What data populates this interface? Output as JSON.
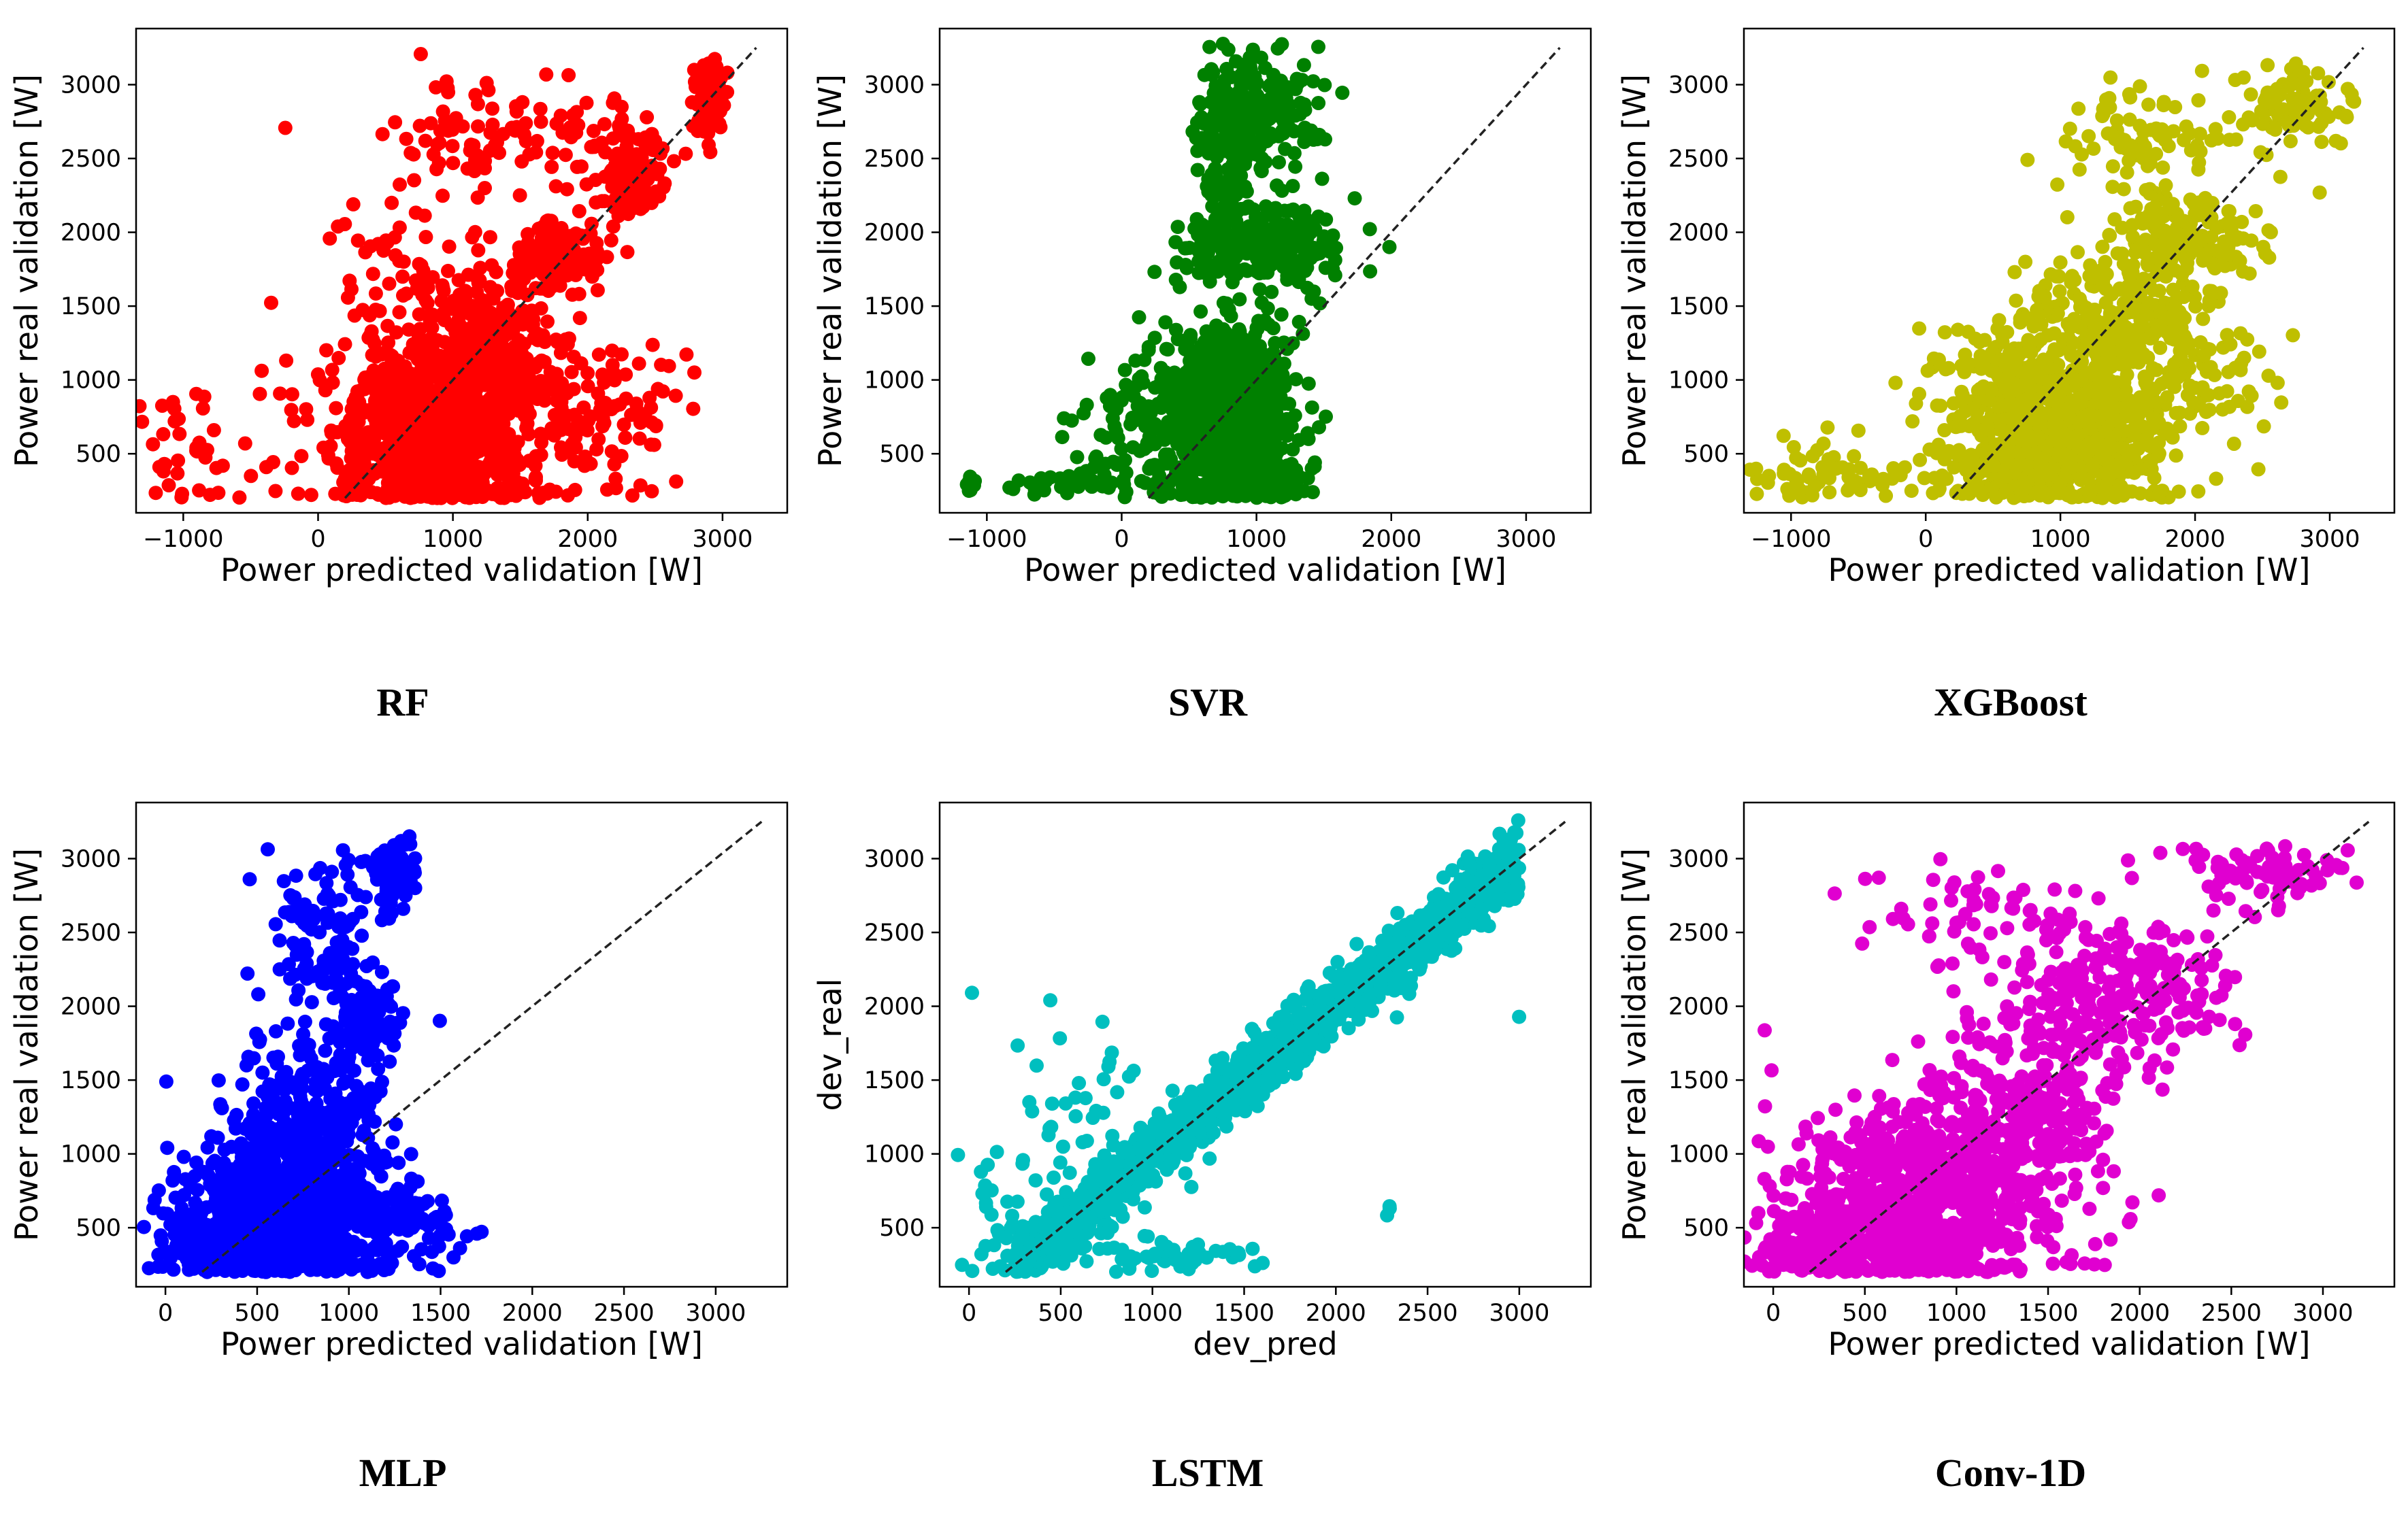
{
  "figure": {
    "background": "#ffffff",
    "reference_line_color": "#222222"
  },
  "chart_data": [
    {
      "id": "rf",
      "type": "scatter",
      "caption": "RF",
      "color": "#ff0000",
      "xlabel": "Power predicted validation [W]",
      "ylabel": "Power real validation [W]",
      "xlim": [
        -1350,
        3480
      ],
      "ylim": [
        100,
        3380
      ],
      "xticks": [
        -1000,
        0,
        1000,
        2000,
        3000
      ],
      "yticks": [
        500,
        1000,
        1500,
        2000,
        2500,
        3000
      ],
      "diagonal": [
        200,
        3250
      ],
      "clusters": [
        {
          "cx": 850,
          "cy": 650,
          "sx": 380,
          "sy": 330,
          "n": 900
        },
        {
          "cx": 1300,
          "cy": 1300,
          "sx": 260,
          "sy": 260,
          "n": 250
        },
        {
          "cx": 1800,
          "cy": 1850,
          "sx": 150,
          "sy": 120,
          "n": 120
        },
        {
          "cx": 2300,
          "cy": 2350,
          "sx": 120,
          "sy": 170,
          "n": 110
        },
        {
          "cx": 2900,
          "cy": 2900,
          "sx": 60,
          "sy": 120,
          "n": 100
        },
        {
          "cx": 1600,
          "cy": 2650,
          "sx": 600,
          "sy": 200,
          "n": 110
        },
        {
          "cx": 1900,
          "cy": 700,
          "sx": 420,
          "sy": 300,
          "n": 130
        },
        {
          "cx": -850,
          "cy": 500,
          "sx": 300,
          "sy": 230,
          "n": 45
        },
        {
          "cx": 550,
          "cy": 1800,
          "sx": 250,
          "sy": 200,
          "n": 40
        }
      ]
    },
    {
      "id": "svr",
      "type": "scatter",
      "caption": "SVR",
      "color": "#008000",
      "xlabel": "Power predicted validation [W]",
      "ylabel": "Power real validation [W]",
      "xlim": [
        -1350,
        3480
      ],
      "ylim": [
        100,
        3380
      ],
      "xticks": [
        -1000,
        0,
        1000,
        2000,
        3000
      ],
      "yticks": [
        500,
        1000,
        1500,
        2000,
        2500,
        3000
      ],
      "diagonal": [
        200,
        3250
      ],
      "clusters": [
        {
          "cx": 800,
          "cy": 700,
          "sx": 250,
          "sy": 330,
          "n": 900
        },
        {
          "cx": 1100,
          "cy": 1900,
          "sx": 320,
          "sy": 130,
          "n": 260
        },
        {
          "cx": 1000,
          "cy": 2800,
          "sx": 230,
          "sy": 200,
          "n": 200
        },
        {
          "cx": 750,
          "cy": 2400,
          "sx": 100,
          "sy": 300,
          "n": 100
        },
        {
          "cx": 150,
          "cy": 700,
          "sx": 250,
          "sy": 300,
          "n": 90
        },
        {
          "cx": -400,
          "cy": 300,
          "sx": 300,
          "sy": 40,
          "n": 40
        },
        {
          "cx": -1120,
          "cy": 290,
          "sx": 20,
          "sy": 30,
          "n": 8
        }
      ]
    },
    {
      "id": "xgboost",
      "type": "scatter",
      "caption": "XGBoost",
      "color": "#bfbf00",
      "xlabel": "Power predicted validation [W]",
      "ylabel": "Power real validation [W]",
      "xlim": [
        -1350,
        3480
      ],
      "ylim": [
        100,
        3380
      ],
      "xticks": [
        -1000,
        0,
        1000,
        2000,
        3000
      ],
      "yticks": [
        500,
        1000,
        1500,
        2000,
        2500,
        3000
      ],
      "diagonal": [
        200,
        3250
      ],
      "clusters": [
        {
          "cx": 950,
          "cy": 650,
          "sx": 420,
          "sy": 330,
          "n": 900
        },
        {
          "cx": 1400,
          "cy": 1350,
          "sx": 350,
          "sy": 280,
          "n": 280
        },
        {
          "cx": 1900,
          "cy": 1950,
          "sx": 300,
          "sy": 220,
          "n": 150
        },
        {
          "cx": 1600,
          "cy": 2650,
          "sx": 350,
          "sy": 180,
          "n": 80
        },
        {
          "cx": 2700,
          "cy": 2850,
          "sx": 200,
          "sy": 140,
          "n": 80
        },
        {
          "cx": -700,
          "cy": 350,
          "sx": 350,
          "sy": 120,
          "n": 60
        },
        {
          "cx": 2200,
          "cy": 1000,
          "sx": 300,
          "sy": 300,
          "n": 60
        }
      ]
    },
    {
      "id": "mlp",
      "type": "scatter",
      "caption": "MLP",
      "color": "#0000ff",
      "xlabel": "Power predicted validation [W]",
      "ylabel": "Power real validation [W]",
      "xlim": [
        -160,
        3390
      ],
      "ylim": [
        100,
        3380
      ],
      "xticks": [
        0,
        500,
        1000,
        1500,
        2000,
        2500,
        3000
      ],
      "yticks": [
        500,
        1000,
        1500,
        2000,
        2500,
        3000
      ],
      "diagonal": [
        200,
        3250
      ],
      "clusters": [
        {
          "cx": 650,
          "cy": 600,
          "sx": 260,
          "sy": 280,
          "n": 900
        },
        {
          "cx": 750,
          "cy": 1200,
          "sx": 200,
          "sy": 300,
          "n": 250
        },
        {
          "cx": 1100,
          "cy": 1900,
          "sx": 80,
          "sy": 150,
          "n": 100
        },
        {
          "cx": 1250,
          "cy": 2900,
          "sx": 60,
          "sy": 120,
          "n": 90
        },
        {
          "cx": 850,
          "cy": 2500,
          "sx": 150,
          "sy": 280,
          "n": 110
        },
        {
          "cx": 1300,
          "cy": 550,
          "sx": 180,
          "sy": 150,
          "n": 100
        },
        {
          "cx": 250,
          "cy": 400,
          "sx": 150,
          "sy": 120,
          "n": 150
        }
      ]
    },
    {
      "id": "lstm",
      "type": "scatter",
      "caption": "LSTM",
      "color": "#00bfbf",
      "xlabel": "dev_pred",
      "ylabel": "dev_real",
      "xlim": [
        -160,
        3390
      ],
      "ylim": [
        100,
        3380
      ],
      "xticks": [
        0,
        500,
        1000,
        1500,
        2000,
        2500,
        3000
      ],
      "yticks": [
        500,
        1000,
        1500,
        2000,
        2500,
        3000
      ],
      "diagonal": [
        200,
        3250
      ],
      "clusters": [
        {
          "line": true,
          "x0": 250,
          "x1": 3000,
          "sd": 110,
          "n": 1500
        },
        {
          "cx": 600,
          "cy": 1200,
          "sx": 250,
          "sy": 400,
          "n": 60
        },
        {
          "cx": 1100,
          "cy": 300,
          "sx": 250,
          "sy": 60,
          "n": 60
        },
        {
          "cx": 2300,
          "cy": 620,
          "sx": 30,
          "sy": 30,
          "n": 3
        },
        {
          "cx": 3000,
          "cy": 1920,
          "sx": 5,
          "sy": 5,
          "n": 1
        },
        {
          "cx": 100,
          "cy": 500,
          "sx": 80,
          "sy": 250,
          "n": 25
        }
      ]
    },
    {
      "id": "conv1d",
      "type": "scatter",
      "caption": "Conv-1D",
      "color": "#e000d0",
      "xlabel": "Power predicted validation [W]",
      "ylabel": "Power real validation [W]",
      "xlim": [
        -160,
        3390
      ],
      "ylim": [
        100,
        3380
      ],
      "xticks": [
        0,
        500,
        1000,
        1500,
        2000,
        2500,
        3000
      ],
      "yticks": [
        500,
        1000,
        1500,
        2000,
        2500,
        3000
      ],
      "diagonal": [
        200,
        3250
      ],
      "clusters": [
        {
          "cx": 800,
          "cy": 650,
          "sx": 380,
          "sy": 330,
          "n": 900
        },
        {
          "cx": 1300,
          "cy": 1200,
          "sx": 300,
          "sy": 250,
          "n": 250
        },
        {
          "cx": 1800,
          "cy": 1950,
          "sx": 350,
          "sy": 200,
          "n": 200
        },
        {
          "cx": 1100,
          "cy": 2600,
          "sx": 350,
          "sy": 200,
          "n": 70
        },
        {
          "cx": 2700,
          "cy": 2900,
          "sx": 250,
          "sy": 100,
          "n": 80
        },
        {
          "cx": 2000,
          "cy": 2300,
          "sx": 250,
          "sy": 150,
          "n": 80
        },
        {
          "cx": 200,
          "cy": 350,
          "sx": 150,
          "sy": 100,
          "n": 200
        }
      ]
    }
  ]
}
